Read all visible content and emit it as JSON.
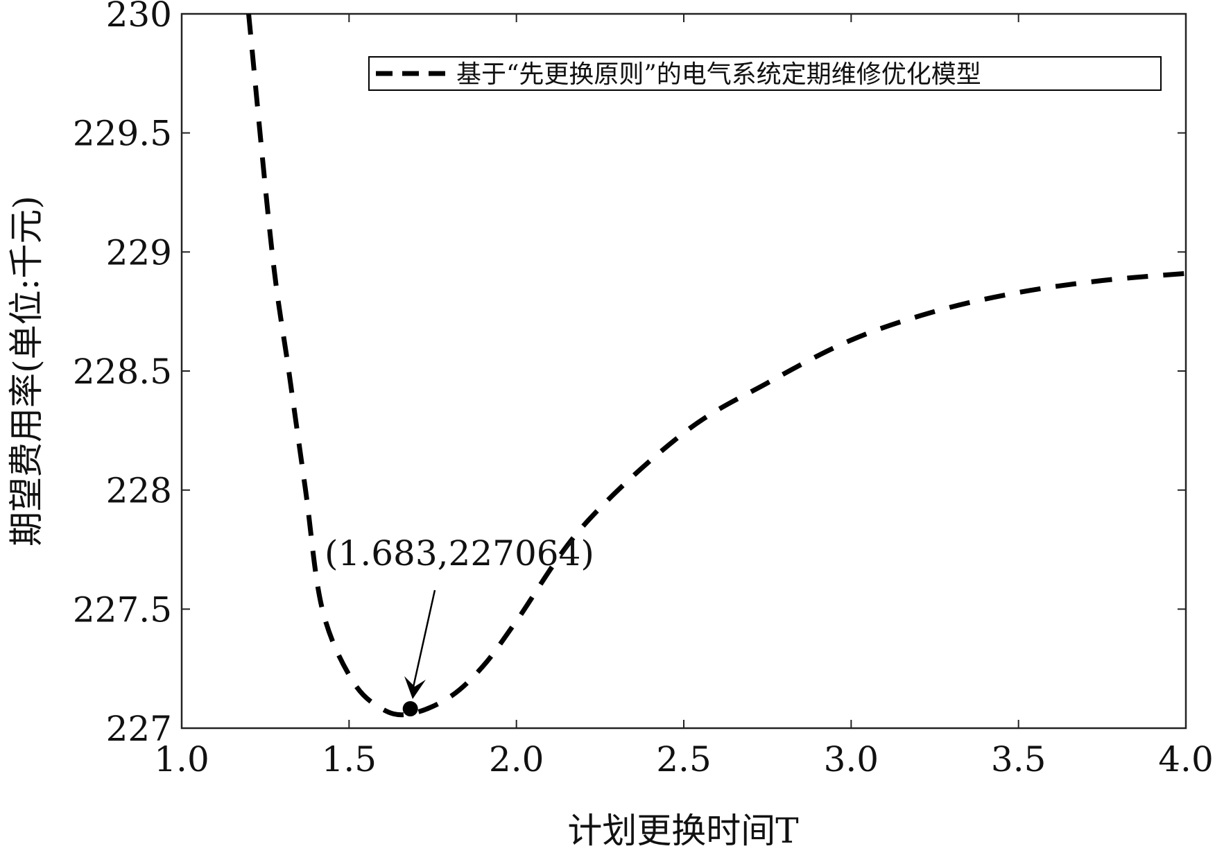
{
  "chart_data": {
    "type": "line",
    "title": "",
    "xlabel": "计划更换时间T",
    "ylabel": "期望费用率(单位:千元)",
    "xlim": [
      1.0,
      4.0
    ],
    "ylim": [
      227,
      230
    ],
    "xticks": [
      "1.0",
      "1.5",
      "2.0",
      "2.5",
      "3.0",
      "3.5",
      "4.0"
    ],
    "yticks": [
      "227",
      "227.5",
      "228",
      "228.5",
      "229",
      "229.5",
      "230"
    ],
    "grid": false,
    "legend_position": "top-right",
    "series": [
      {
        "name": "基于“先更换原则”的电气系统定期维修优化模型",
        "style": "dashed",
        "color": "#000000",
        "x": [
          1.2,
          1.27,
          1.32,
          1.37,
          1.42,
          1.51,
          1.6,
          1.683,
          1.8,
          1.9,
          2.0,
          2.2,
          2.5,
          2.75,
          3.0,
          3.25,
          3.5,
          3.75,
          4.0
        ],
        "y": [
          230.0,
          229.0,
          228.5,
          228.0,
          227.5,
          227.2,
          227.08,
          227.06,
          227.13,
          227.26,
          227.45,
          227.85,
          228.24,
          228.45,
          228.63,
          228.75,
          228.83,
          228.88,
          228.91
        ]
      }
    ],
    "annotation": {
      "text": "(1.683,227064)",
      "x": 1.683,
      "y": 227.064
    }
  }
}
